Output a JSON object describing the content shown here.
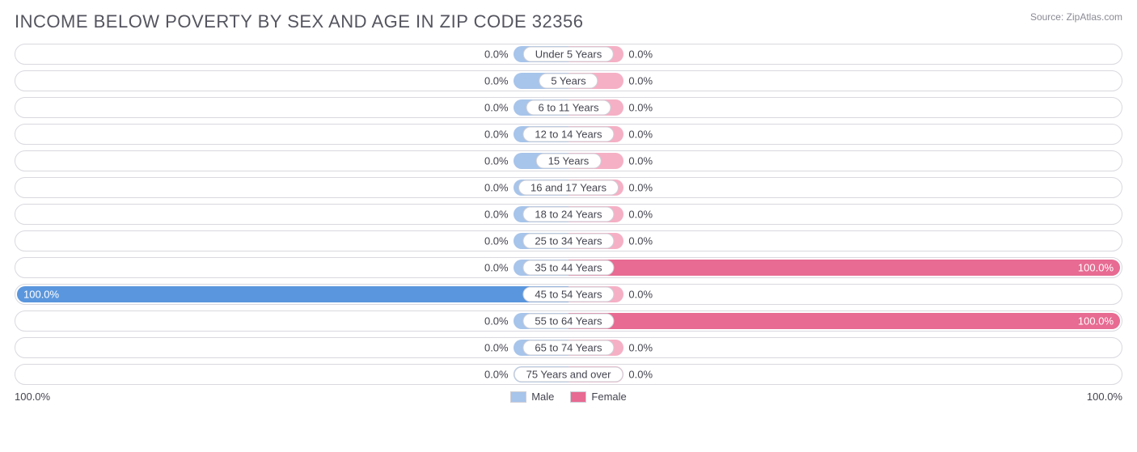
{
  "title": "INCOME BELOW POVERTY BY SEX AND AGE IN ZIP CODE 32356",
  "source": "Source: ZipAtlas.com",
  "chart": {
    "type": "diverging-bar",
    "min_bar_pct": 10,
    "track_border_color": "#d9d9df",
    "track_bg": "#ffffff",
    "male_color_min": "#a7c4ea",
    "male_color_full": "#5a96dd",
    "female_color_min": "#f5b0c5",
    "female_color_full": "#e76b92",
    "label_bg": "#ffffff",
    "label_border": "#cfcfd6",
    "text_color": "#444450",
    "rows": [
      {
        "label": "Under 5 Years",
        "male": 0.0,
        "female": 0.0
      },
      {
        "label": "5 Years",
        "male": 0.0,
        "female": 0.0
      },
      {
        "label": "6 to 11 Years",
        "male": 0.0,
        "female": 0.0
      },
      {
        "label": "12 to 14 Years",
        "male": 0.0,
        "female": 0.0
      },
      {
        "label": "15 Years",
        "male": 0.0,
        "female": 0.0
      },
      {
        "label": "16 and 17 Years",
        "male": 0.0,
        "female": 0.0
      },
      {
        "label": "18 to 24 Years",
        "male": 0.0,
        "female": 0.0
      },
      {
        "label": "25 to 34 Years",
        "male": 0.0,
        "female": 0.0
      },
      {
        "label": "35 to 44 Years",
        "male": 0.0,
        "female": 100.0
      },
      {
        "label": "45 to 54 Years",
        "male": 100.0,
        "female": 0.0
      },
      {
        "label": "55 to 64 Years",
        "male": 0.0,
        "female": 100.0
      },
      {
        "label": "65 to 74 Years",
        "male": 0.0,
        "female": 0.0
      },
      {
        "label": "75 Years and over",
        "male": 0.0,
        "female": 0.0
      }
    ]
  },
  "axis": {
    "left": "100.0%",
    "right": "100.0%"
  },
  "legend": {
    "male": {
      "label": "Male",
      "color": "#a7c4ea"
    },
    "female": {
      "label": "Female",
      "color": "#e76b92"
    }
  }
}
